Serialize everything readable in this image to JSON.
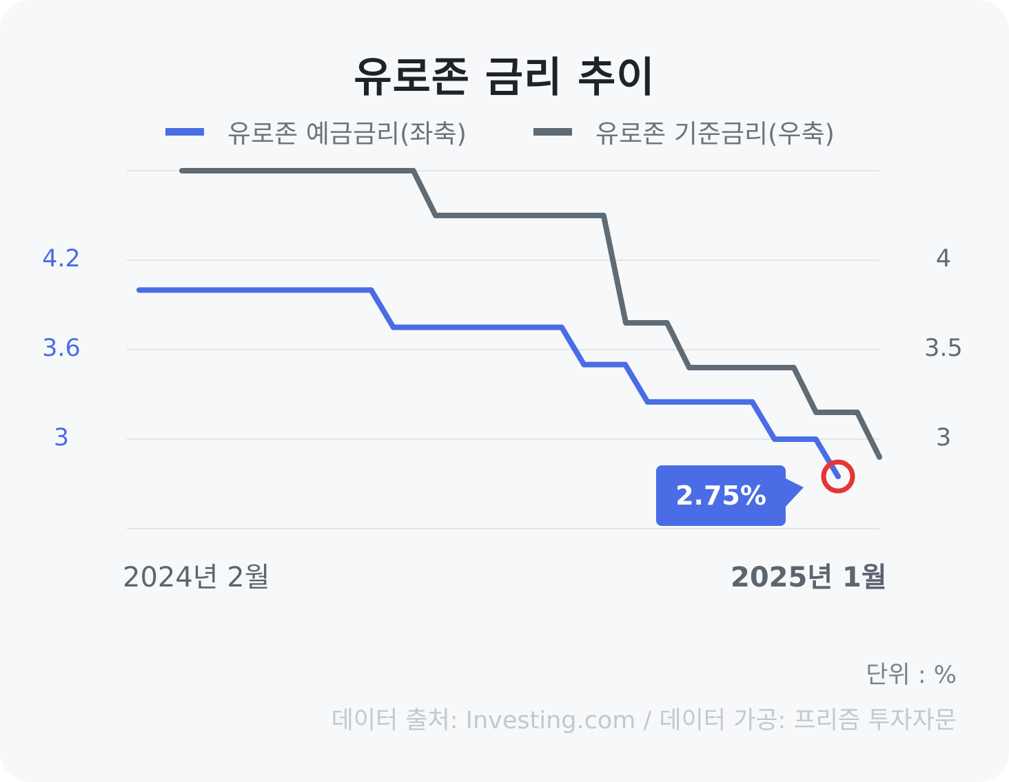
{
  "colors": {
    "deposit_rate": "#4a6de5",
    "base_rate": "#5f6b75",
    "marker": "#e53535",
    "callout_bg": "#4a6de5"
  },
  "chart_data": {
    "type": "line",
    "title": "유로존 금리 추이",
    "legend_position": "top",
    "grid": true,
    "x_tick_labels": [
      "2024년 2월",
      "2025년 1월"
    ],
    "series": [
      {
        "name": "유로존 예금금리(좌축)",
        "axis": "left",
        "x": [
          "2024-02",
          "2024-03",
          "2024-04",
          "2024-05",
          "2024-06",
          "2024-07",
          "2024-08",
          "2024-09",
          "2024-10",
          "2024-11",
          "2024-12",
          "2025-01"
        ],
        "values": [
          4.0,
          4.0,
          4.0,
          4.0,
          3.75,
          3.75,
          3.75,
          3.5,
          3.25,
          3.25,
          3.0,
          2.75
        ]
      },
      {
        "name": "유로존 기준금리(우축)",
        "axis": "right",
        "x": [
          "2024-02",
          "2024-03",
          "2024-04",
          "2024-05",
          "2024-06",
          "2024-07",
          "2024-08",
          "2024-09",
          "2024-10",
          "2024-11",
          "2024-12",
          "2025-01"
        ],
        "values": [
          4.5,
          4.5,
          4.5,
          4.5,
          4.25,
          4.25,
          4.25,
          3.65,
          3.4,
          3.4,
          3.15,
          2.9
        ]
      }
    ],
    "y_left": {
      "ticks": [
        4.2,
        3.6,
        3
      ],
      "range": [
        2.4,
        4.8
      ]
    },
    "y_right": {
      "ticks": [
        4,
        3.5,
        3
      ],
      "range": [
        2.5,
        4.5
      ]
    },
    "callout": {
      "series": 0,
      "point": 11,
      "text": "2.75%"
    }
  },
  "unit_label": "단위 : %",
  "source_label": "데이터 출처: Investing.com / 데이터 가공: 프리즘 투자자문"
}
